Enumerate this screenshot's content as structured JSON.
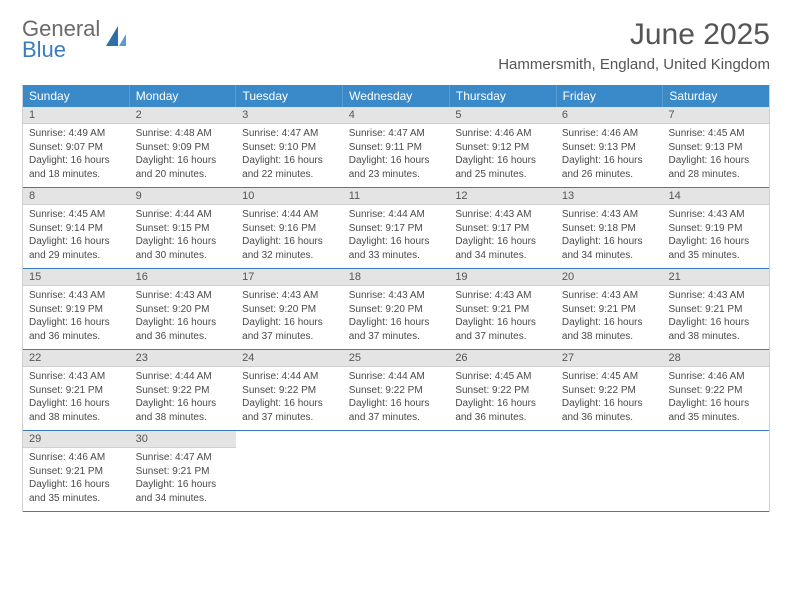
{
  "logo": {
    "general": "General",
    "blue": "Blue"
  },
  "title": "June 2025",
  "location": "Hammersmith, England, United Kingdom",
  "colors": {
    "header_bg": "#3a8ac9",
    "header_text": "#ffffff",
    "daynum_bg": "#e4e4e4",
    "week_border": "#3a7dbf",
    "text": "#4a4a4a"
  },
  "day_names": [
    "Sunday",
    "Monday",
    "Tuesday",
    "Wednesday",
    "Thursday",
    "Friday",
    "Saturday"
  ],
  "weeks": [
    [
      {
        "n": "1",
        "sr": "Sunrise: 4:49 AM",
        "ss": "Sunset: 9:07 PM",
        "d1": "Daylight: 16 hours",
        "d2": "and 18 minutes."
      },
      {
        "n": "2",
        "sr": "Sunrise: 4:48 AM",
        "ss": "Sunset: 9:09 PM",
        "d1": "Daylight: 16 hours",
        "d2": "and 20 minutes."
      },
      {
        "n": "3",
        "sr": "Sunrise: 4:47 AM",
        "ss": "Sunset: 9:10 PM",
        "d1": "Daylight: 16 hours",
        "d2": "and 22 minutes."
      },
      {
        "n": "4",
        "sr": "Sunrise: 4:47 AM",
        "ss": "Sunset: 9:11 PM",
        "d1": "Daylight: 16 hours",
        "d2": "and 23 minutes."
      },
      {
        "n": "5",
        "sr": "Sunrise: 4:46 AM",
        "ss": "Sunset: 9:12 PM",
        "d1": "Daylight: 16 hours",
        "d2": "and 25 minutes."
      },
      {
        "n": "6",
        "sr": "Sunrise: 4:46 AM",
        "ss": "Sunset: 9:13 PM",
        "d1": "Daylight: 16 hours",
        "d2": "and 26 minutes."
      },
      {
        "n": "7",
        "sr": "Sunrise: 4:45 AM",
        "ss": "Sunset: 9:13 PM",
        "d1": "Daylight: 16 hours",
        "d2": "and 28 minutes."
      }
    ],
    [
      {
        "n": "8",
        "sr": "Sunrise: 4:45 AM",
        "ss": "Sunset: 9:14 PM",
        "d1": "Daylight: 16 hours",
        "d2": "and 29 minutes."
      },
      {
        "n": "9",
        "sr": "Sunrise: 4:44 AM",
        "ss": "Sunset: 9:15 PM",
        "d1": "Daylight: 16 hours",
        "d2": "and 30 minutes."
      },
      {
        "n": "10",
        "sr": "Sunrise: 4:44 AM",
        "ss": "Sunset: 9:16 PM",
        "d1": "Daylight: 16 hours",
        "d2": "and 32 minutes."
      },
      {
        "n": "11",
        "sr": "Sunrise: 4:44 AM",
        "ss": "Sunset: 9:17 PM",
        "d1": "Daylight: 16 hours",
        "d2": "and 33 minutes."
      },
      {
        "n": "12",
        "sr": "Sunrise: 4:43 AM",
        "ss": "Sunset: 9:17 PM",
        "d1": "Daylight: 16 hours",
        "d2": "and 34 minutes."
      },
      {
        "n": "13",
        "sr": "Sunrise: 4:43 AM",
        "ss": "Sunset: 9:18 PM",
        "d1": "Daylight: 16 hours",
        "d2": "and 34 minutes."
      },
      {
        "n": "14",
        "sr": "Sunrise: 4:43 AM",
        "ss": "Sunset: 9:19 PM",
        "d1": "Daylight: 16 hours",
        "d2": "and 35 minutes."
      }
    ],
    [
      {
        "n": "15",
        "sr": "Sunrise: 4:43 AM",
        "ss": "Sunset: 9:19 PM",
        "d1": "Daylight: 16 hours",
        "d2": "and 36 minutes."
      },
      {
        "n": "16",
        "sr": "Sunrise: 4:43 AM",
        "ss": "Sunset: 9:20 PM",
        "d1": "Daylight: 16 hours",
        "d2": "and 36 minutes."
      },
      {
        "n": "17",
        "sr": "Sunrise: 4:43 AM",
        "ss": "Sunset: 9:20 PM",
        "d1": "Daylight: 16 hours",
        "d2": "and 37 minutes."
      },
      {
        "n": "18",
        "sr": "Sunrise: 4:43 AM",
        "ss": "Sunset: 9:20 PM",
        "d1": "Daylight: 16 hours",
        "d2": "and 37 minutes."
      },
      {
        "n": "19",
        "sr": "Sunrise: 4:43 AM",
        "ss": "Sunset: 9:21 PM",
        "d1": "Daylight: 16 hours",
        "d2": "and 37 minutes."
      },
      {
        "n": "20",
        "sr": "Sunrise: 4:43 AM",
        "ss": "Sunset: 9:21 PM",
        "d1": "Daylight: 16 hours",
        "d2": "and 38 minutes."
      },
      {
        "n": "21",
        "sr": "Sunrise: 4:43 AM",
        "ss": "Sunset: 9:21 PM",
        "d1": "Daylight: 16 hours",
        "d2": "and 38 minutes."
      }
    ],
    [
      {
        "n": "22",
        "sr": "Sunrise: 4:43 AM",
        "ss": "Sunset: 9:21 PM",
        "d1": "Daylight: 16 hours",
        "d2": "and 38 minutes."
      },
      {
        "n": "23",
        "sr": "Sunrise: 4:44 AM",
        "ss": "Sunset: 9:22 PM",
        "d1": "Daylight: 16 hours",
        "d2": "and 38 minutes."
      },
      {
        "n": "24",
        "sr": "Sunrise: 4:44 AM",
        "ss": "Sunset: 9:22 PM",
        "d1": "Daylight: 16 hours",
        "d2": "and 37 minutes."
      },
      {
        "n": "25",
        "sr": "Sunrise: 4:44 AM",
        "ss": "Sunset: 9:22 PM",
        "d1": "Daylight: 16 hours",
        "d2": "and 37 minutes."
      },
      {
        "n": "26",
        "sr": "Sunrise: 4:45 AM",
        "ss": "Sunset: 9:22 PM",
        "d1": "Daylight: 16 hours",
        "d2": "and 36 minutes."
      },
      {
        "n": "27",
        "sr": "Sunrise: 4:45 AM",
        "ss": "Sunset: 9:22 PM",
        "d1": "Daylight: 16 hours",
        "d2": "and 36 minutes."
      },
      {
        "n": "28",
        "sr": "Sunrise: 4:46 AM",
        "ss": "Sunset: 9:22 PM",
        "d1": "Daylight: 16 hours",
        "d2": "and 35 minutes."
      }
    ],
    [
      {
        "n": "29",
        "sr": "Sunrise: 4:46 AM",
        "ss": "Sunset: 9:21 PM",
        "d1": "Daylight: 16 hours",
        "d2": "and 35 minutes."
      },
      {
        "n": "30",
        "sr": "Sunrise: 4:47 AM",
        "ss": "Sunset: 9:21 PM",
        "d1": "Daylight: 16 hours",
        "d2": "and 34 minutes."
      },
      {
        "empty": true
      },
      {
        "empty": true
      },
      {
        "empty": true
      },
      {
        "empty": true
      },
      {
        "empty": true
      }
    ]
  ]
}
